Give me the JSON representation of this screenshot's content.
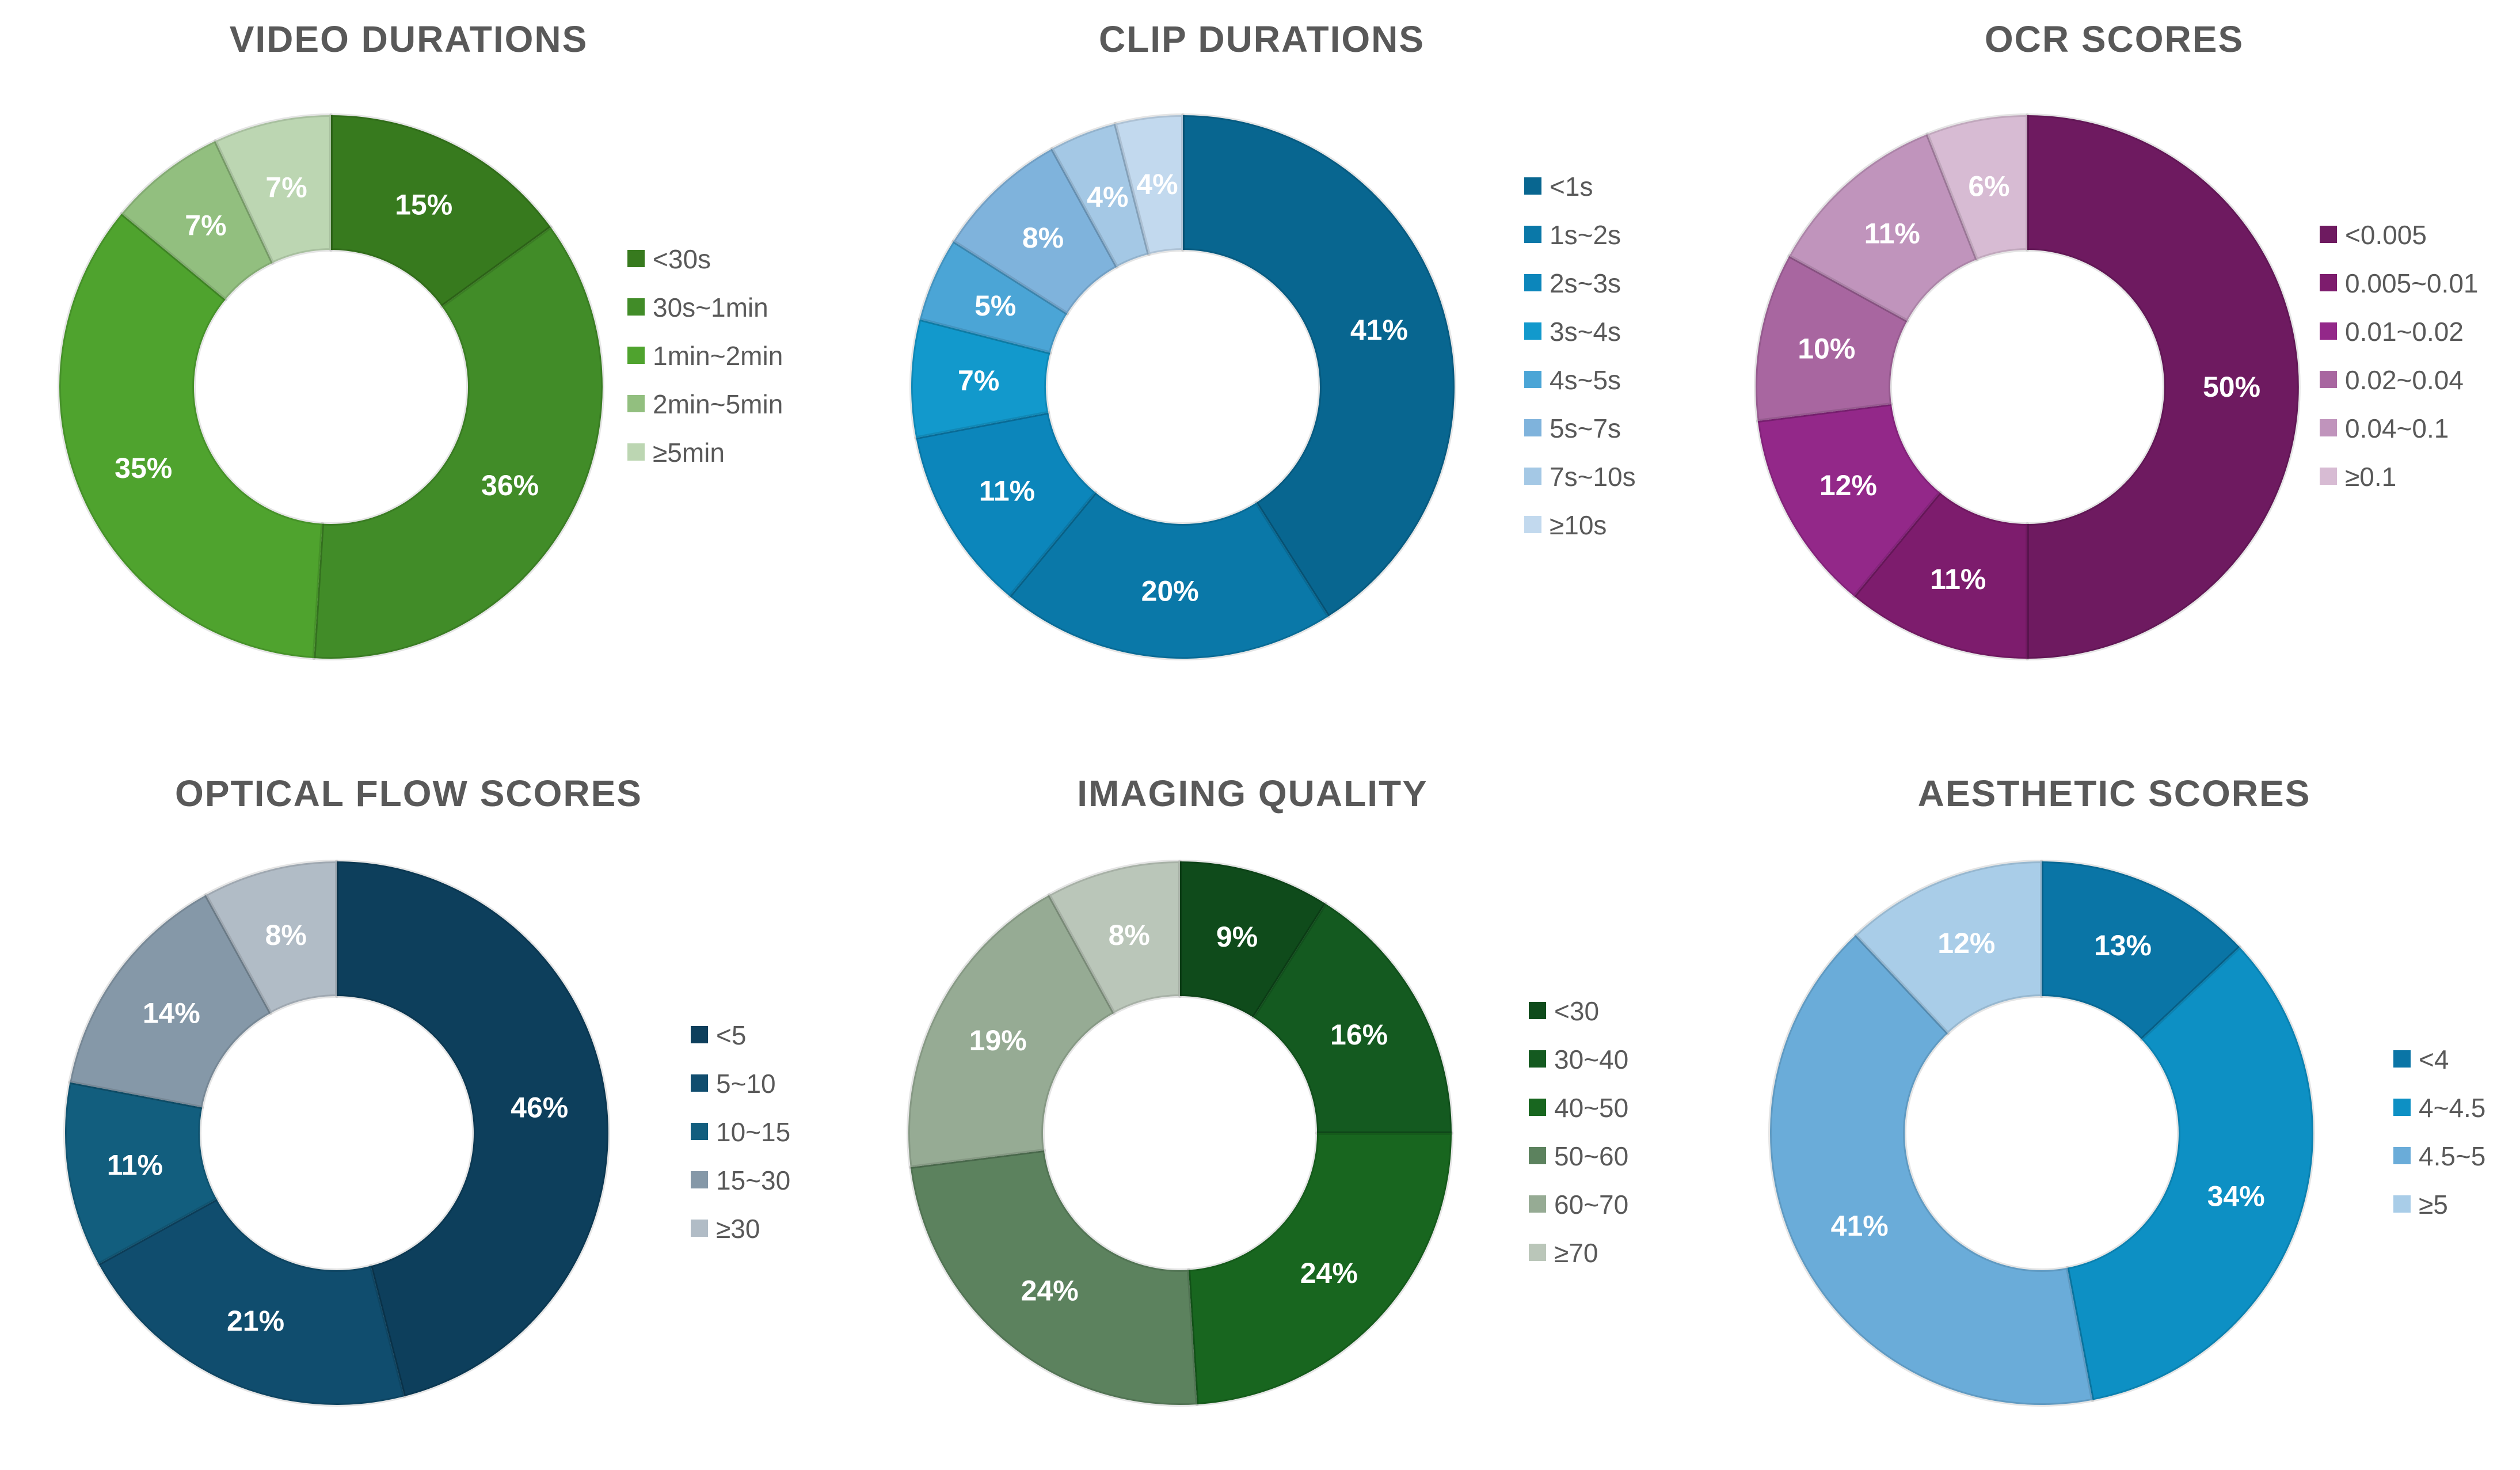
{
  "chart_data": [
    {
      "type": "pie",
      "title": "VIDEO DURATIONS",
      "categories": [
        "<30s",
        "30s~1min",
        "1min~2min",
        "2min~5min",
        "≥5min"
      ],
      "values": [
        15,
        36,
        35,
        7,
        7
      ],
      "labels": [
        "15%",
        "36%",
        "35%",
        "7%",
        "7%"
      ],
      "colors": [
        "#377a1e",
        "#418c28",
        "#4fa32e",
        "#92bf7f",
        "#bcd6b2"
      ],
      "legend_position": "right"
    },
    {
      "type": "pie",
      "title": "CLIP DURATIONS",
      "categories": [
        "<1s",
        "1s~2s",
        "2s~3s",
        "3s~4s",
        "4s~5s",
        "5s~7s",
        "7s~10s",
        "≥10s"
      ],
      "values": [
        41,
        20,
        11,
        7,
        5,
        8,
        4,
        4
      ],
      "labels": [
        "41%",
        "20%",
        "11%",
        "7%",
        "5%",
        "8%",
        "4%",
        "4%"
      ],
      "colors": [
        "#086690",
        "#0a78a8",
        "#0c86bb",
        "#1299cc",
        "#4ba5d6",
        "#7fb3dc",
        "#a4c8e5",
        "#c2d9ee"
      ],
      "legend_position": "right"
    },
    {
      "type": "pie",
      "title": "OCR SCORES",
      "categories": [
        "<0.005",
        "0.005~0.01",
        "0.01~0.02",
        "0.02~0.04",
        "0.04~0.1",
        "≥0.1"
      ],
      "values": [
        50,
        11,
        12,
        10,
        11,
        6
      ],
      "labels": [
        "50%",
        "11%",
        "12%",
        "10%",
        "11%",
        "6%"
      ],
      "colors": [
        "#6e1a60",
        "#7d1c6d",
        "#932889",
        "#a866a0",
        "#c094bc",
        "#d7bbd3"
      ],
      "legend_position": "right"
    },
    {
      "type": "pie",
      "title": "OPTICAL FLOW SCORES",
      "categories": [
        "<5",
        "5~10",
        "10~15",
        "15~30",
        "≥30"
      ],
      "values": [
        46,
        21,
        11,
        14,
        8
      ],
      "labels": [
        "46%",
        "21%",
        "11%",
        "14%",
        "8%"
      ],
      "colors": [
        "#0d3f5c",
        "#104d6e",
        "#125e7e",
        "#8598a8",
        "#b1bcc6"
      ],
      "legend_position": "right"
    },
    {
      "type": "pie",
      "title": "IMAGING QUALITY",
      "categories": [
        "<30",
        "30~40",
        "40~50",
        "50~60",
        "60~70",
        "≥70"
      ],
      "values": [
        9,
        16,
        24,
        24,
        19,
        8
      ],
      "labels": [
        "9%",
        "16%",
        "24%",
        "24%",
        "19%",
        "8%"
      ],
      "colors": [
        "#0f4b1b",
        "#145a20",
        "#18661f",
        "#5c825e",
        "#96ab94",
        "#bac6b9"
      ],
      "legend_position": "right"
    },
    {
      "type": "pie",
      "title": "AESTHETIC SCORES",
      "categories": [
        "<4",
        "4~4.5",
        "4.5~5",
        "≥5"
      ],
      "values": [
        13,
        34,
        41,
        12
      ],
      "labels": [
        "13%",
        "34%",
        "41%",
        "12%"
      ],
      "colors": [
        "#0a75a6",
        "#0d90c4",
        "#6aacd9",
        "#a9cde8"
      ],
      "legend_position": "right"
    }
  ]
}
